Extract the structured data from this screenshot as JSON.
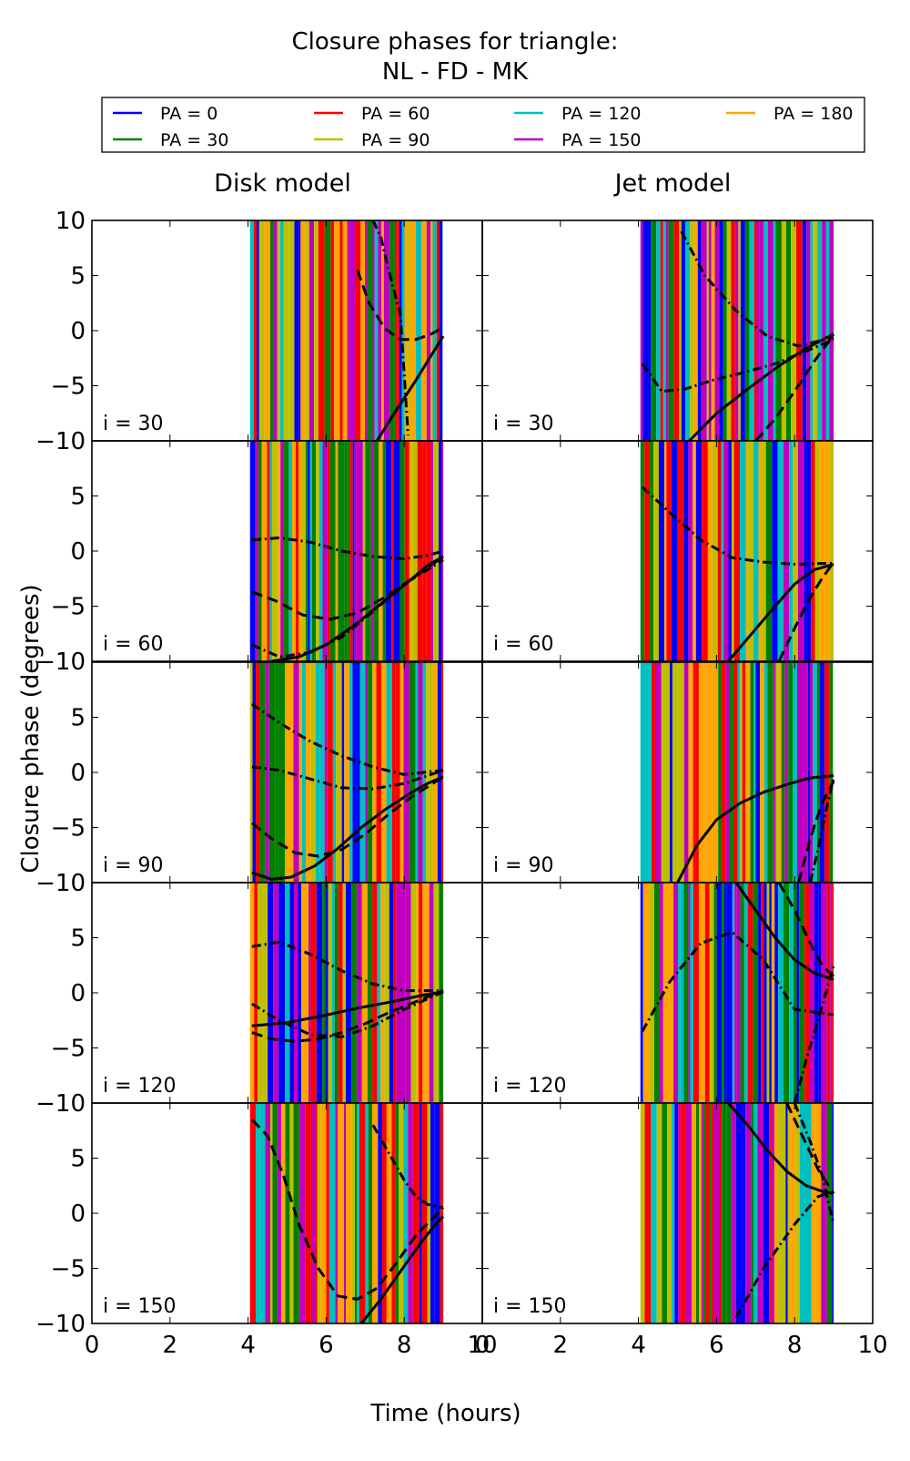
{
  "chart_data": {
    "type": "line",
    "title": "Closure phases for triangle:",
    "subtitle": "NL - FD - MK",
    "xlabel": "Time (hours)",
    "ylabel": "Closure phase (degrees)",
    "xlim": [
      0,
      10
    ],
    "ylim": [
      -10,
      10
    ],
    "xticks": [
      "0",
      "2",
      "4",
      "6",
      "8",
      "10"
    ],
    "yticks": [
      "10",
      "5",
      "0",
      "−5",
      "−10"
    ],
    "yticks_top_panel_only": [
      "10"
    ],
    "grid": false,
    "legend": {
      "placement": "top",
      "columns": 4,
      "entries": [
        {
          "label": "PA = 0",
          "color": "#0000ff"
        },
        {
          "label": "PA = 30",
          "color": "#008000"
        },
        {
          "label": "PA = 60",
          "color": "#ff0000"
        },
        {
          "label": "PA = 90",
          "color": "#bfbf00"
        },
        {
          "label": "PA = 120",
          "color": "#00bfbf"
        },
        {
          "label": "PA = 150",
          "color": "#bf00bf"
        },
        {
          "label": "PA = 180",
          "color": "#ffa500"
        }
      ]
    },
    "columns": [
      "Disk model",
      "Jet model"
    ],
    "rows": [
      "i = 30",
      "i = 60",
      "i = 90",
      "i = 120",
      "i = 150"
    ],
    "time_range_hours": [
      4.05,
      9.0
    ],
    "panels": [
      {
        "column": "Disk model",
        "row": "i = 30",
        "curves": [
          {
            "style": "solid",
            "x": [
              7.3,
              7.8,
              8.3,
              8.7,
              9.0
            ],
            "y": [
              -10,
              -7.2,
              -4.5,
              -2.2,
              -0.5
            ]
          },
          {
            "style": "dashed",
            "x": [
              6.8,
              7.1,
              7.5,
              7.9,
              8.3,
              8.7,
              9.0
            ],
            "y": [
              5.5,
              2.5,
              0.2,
              -0.8,
              -0.8,
              -0.3,
              0.3
            ]
          },
          {
            "style": "dashdot",
            "x": [
              7.2,
              7.4,
              7.6,
              7.9,
              8.1
            ],
            "y": [
              10,
              8.5,
              5.5,
              1.5,
              -9.5
            ]
          }
        ]
      },
      {
        "column": "Jet model",
        "row": "i = 30",
        "curves": [
          {
            "style": "solid",
            "x": [
              5.3,
              6.0,
              6.8,
              7.6,
              8.3,
              9.0
            ],
            "y": [
              -10,
              -7.5,
              -5.3,
              -3.2,
              -1.6,
              -0.3
            ]
          },
          {
            "style": "dashed",
            "x": [
              7.0,
              7.5,
              8.0,
              8.5,
              9.0
            ],
            "y": [
              -10,
              -8.0,
              -5.5,
              -2.8,
              -0.4
            ]
          },
          {
            "style": "dashdot",
            "x": [
              4.1,
              4.6,
              5.2,
              5.9,
              6.7,
              7.5,
              8.2,
              9.0
            ],
            "y": [
              -3.0,
              -5.5,
              -5.3,
              -4.5,
              -3.8,
              -3.0,
              -2.0,
              -0.8
            ]
          },
          {
            "style": "dashdot",
            "x": [
              5.1,
              5.7,
              6.5,
              7.3,
              8.1,
              9.0
            ],
            "y": [
              9.0,
              5.0,
              1.8,
              -0.5,
              -1.4,
              -0.6
            ]
          }
        ]
      },
      {
        "column": "Disk model",
        "row": "i = 60",
        "curves": [
          {
            "style": "solid",
            "x": [
              4.6,
              5.3,
              6.0,
              6.7,
              7.4,
              8.1,
              8.6,
              9.0
            ],
            "y": [
              -10,
              -9.6,
              -8.5,
              -6.8,
              -4.8,
              -2.8,
              -1.3,
              -0.5
            ]
          },
          {
            "style": "dashed",
            "x": [
              4.1,
              4.7,
              5.4,
              6.1,
              6.8,
              7.5,
              8.2,
              9.0
            ],
            "y": [
              -3.7,
              -4.5,
              -5.8,
              -6.2,
              -5.6,
              -4.2,
              -2.5,
              -0.5
            ]
          },
          {
            "style": "dashdot",
            "x": [
              4.1,
              4.8,
              5.6,
              6.4,
              7.2,
              8.0,
              8.6,
              9.0
            ],
            "y": [
              1.0,
              1.2,
              0.8,
              0.0,
              -0.5,
              -0.7,
              -0.4,
              0.0
            ]
          },
          {
            "style": "dashdot",
            "x": [
              4.1,
              4.8,
              5.6,
              6.4,
              7.2,
              8.0,
              9.0
            ],
            "y": [
              -8.5,
              -9.6,
              -9.2,
              -7.8,
              -5.5,
              -3.0,
              -0.8
            ]
          }
        ]
      },
      {
        "column": "Jet model",
        "row": "i = 60",
        "curves": [
          {
            "style": "solid",
            "x": [
              6.3,
              6.9,
              7.5,
              8.0,
              8.5,
              9.0
            ],
            "y": [
              -10,
              -7.5,
              -5.0,
              -3.0,
              -1.7,
              -1.2
            ]
          },
          {
            "style": "dashed",
            "x": [
              7.6,
              8.0,
              8.4,
              8.7,
              9.0
            ],
            "y": [
              -10,
              -7.0,
              -4.2,
              -2.5,
              -1.0
            ]
          },
          {
            "style": "dashdot",
            "x": [
              4.1,
              4.8,
              5.6,
              6.4,
              7.2,
              8.0,
              9.0
            ],
            "y": [
              5.8,
              3.5,
              1.0,
              -0.6,
              -1.0,
              -1.2,
              -1.1
            ]
          }
        ]
      },
      {
        "column": "Disk model",
        "row": "i = 90",
        "curves": [
          {
            "style": "solid",
            "x": [
              4.1,
              4.6,
              5.1,
              5.7,
              6.3,
              6.9,
              7.5,
              8.1,
              8.6,
              9.0
            ],
            "y": [
              -9.1,
              -9.7,
              -9.5,
              -8.5,
              -6.9,
              -5.0,
              -3.4,
              -2.0,
              -1.0,
              -0.4
            ]
          },
          {
            "style": "dashed",
            "x": [
              4.1,
              4.6,
              5.2,
              5.8,
              6.4,
              7.0,
              7.6,
              8.2,
              9.0
            ],
            "y": [
              -4.6,
              -6.0,
              -7.3,
              -7.6,
              -7.0,
              -5.6,
              -3.8,
              -2.2,
              -0.4
            ]
          },
          {
            "style": "dashdot",
            "x": [
              4.1,
              4.8,
              5.6,
              6.4,
              7.2,
              8.0,
              8.6,
              9.0
            ],
            "y": [
              0.5,
              0.2,
              -0.6,
              -1.4,
              -1.5,
              -1.0,
              -0.3,
              0.2
            ]
          },
          {
            "style": "dashdot",
            "x": [
              4.1,
              4.8,
              5.6,
              6.4,
              7.2,
              8.0,
              9.0
            ],
            "y": [
              6.2,
              4.5,
              2.8,
              1.5,
              0.5,
              -0.2,
              0.2
            ]
          }
        ]
      },
      {
        "column": "Jet model",
        "row": "i = 90",
        "curves": [
          {
            "style": "solid",
            "x": [
              5.0,
              5.5,
              6.0,
              6.6,
              7.2,
              7.8,
              8.4,
              9.0
            ],
            "y": [
              -10,
              -6.6,
              -4.3,
              -2.8,
              -1.8,
              -1.1,
              -0.5,
              -0.3
            ]
          },
          {
            "style": "dashed",
            "x": [
              8.1,
              8.4,
              8.7,
              9.0
            ],
            "y": [
              -10,
              -6.0,
              -2.8,
              -0.8
            ]
          },
          {
            "style": "dashdot",
            "x": [
              8.4,
              8.6,
              8.8,
              9.0
            ],
            "y": [
              -10,
              -7.0,
              -3.5,
              -0.5
            ]
          }
        ]
      },
      {
        "column": "Disk model",
        "row": "i = 120",
        "curves": [
          {
            "style": "solid",
            "x": [
              4.1,
              5.0,
              5.9,
              6.8,
              7.7,
              8.5,
              9.0
            ],
            "y": [
              -3.0,
              -2.7,
              -2.1,
              -1.4,
              -0.8,
              -0.2,
              0.1
            ]
          },
          {
            "style": "dashed",
            "x": [
              4.1,
              4.6,
              5.2,
              5.8,
              6.4,
              7.0,
              7.6,
              8.3,
              9.0
            ],
            "y": [
              -3.6,
              -4.2,
              -4.4,
              -4.2,
              -3.6,
              -2.8,
              -1.8,
              -0.8,
              0.2
            ]
          },
          {
            "style": "dashdot",
            "x": [
              4.1,
              4.8,
              5.6,
              6.4,
              7.2,
              8.0,
              9.0
            ],
            "y": [
              4.2,
              4.6,
              3.5,
              2.0,
              0.8,
              0.2,
              0.2
            ]
          },
          {
            "style": "dashdot",
            "x": [
              4.1,
              4.8,
              5.6,
              6.4,
              7.2,
              8.0,
              9.0
            ],
            "y": [
              -1.0,
              -2.5,
              -3.8,
              -4.0,
              -3.0,
              -1.5,
              0.1
            ]
          }
        ]
      },
      {
        "column": "Jet model",
        "row": "i = 120",
        "curves": [
          {
            "style": "solid",
            "x": [
              6.5,
              7.0,
              7.5,
              8.0,
              8.5,
              9.0
            ],
            "y": [
              10,
              7.5,
              5.0,
              3.0,
              1.8,
              1.2
            ]
          },
          {
            "style": "dashed",
            "x": [
              7.6,
              8.0,
              8.4,
              8.7,
              9.0
            ],
            "y": [
              10,
              7.5,
              4.5,
              2.5,
              1.5
            ]
          },
          {
            "style": "dashdot",
            "x": [
              4.1,
              4.8,
              5.6,
              6.4,
              7.2,
              8.0,
              9.0
            ],
            "y": [
              -3.5,
              1.0,
              4.5,
              5.5,
              3.0,
              -1.5,
              -2.0
            ]
          },
          {
            "style": "dashdot",
            "x": [
              8.0,
              8.3,
              8.6,
              9.0
            ],
            "y": [
              -10,
              -6.0,
              -2.5,
              2.5
            ]
          }
        ]
      },
      {
        "column": "Disk model",
        "row": "i = 150",
        "curves": [
          {
            "style": "solid",
            "x": [
              6.9,
              7.4,
              7.9,
              8.4,
              8.8,
              9.0
            ],
            "y": [
              -10,
              -7.8,
              -5.3,
              -2.8,
              -1.0,
              -0.3
            ]
          },
          {
            "style": "dashed",
            "x": [
              4.1,
              4.5,
              4.9,
              5.3,
              5.8,
              6.3,
              6.8,
              7.3,
              7.8,
              8.3,
              9.0
            ],
            "y": [
              8.5,
              7.0,
              3.5,
              -1.0,
              -5.0,
              -7.5,
              -7.8,
              -6.8,
              -4.5,
              -2.0,
              0.5
            ]
          },
          {
            "style": "dashdot",
            "x": [
              7.2,
              7.6,
              8.0,
              8.3,
              8.6,
              9.0
            ],
            "y": [
              8.0,
              5.5,
              3.0,
              1.5,
              0.8,
              0.5
            ]
          }
        ]
      },
      {
        "column": "Jet model",
        "row": "i = 150",
        "curves": [
          {
            "style": "solid",
            "x": [
              6.3,
              6.8,
              7.3,
              7.8,
              8.3,
              8.7,
              9.0
            ],
            "y": [
              10,
              8.0,
              5.7,
              3.8,
              2.5,
              2.0,
              1.8
            ]
          },
          {
            "style": "dashed",
            "x": [
              7.8,
              8.2,
              8.6,
              9.0
            ],
            "y": [
              10,
              7.0,
              4.0,
              1.8
            ]
          },
          {
            "style": "dashdot",
            "x": [
              8.0,
              8.4,
              8.7,
              9.0
            ],
            "y": [
              10,
              6.5,
              3.5,
              -1.0
            ]
          },
          {
            "style": "dashdot",
            "x": [
              6.5,
              7.2,
              8.0,
              8.6,
              9.0
            ],
            "y": [
              -9.5,
              -5.0,
              -1.0,
              1.5,
              2.0
            ]
          }
        ]
      }
    ]
  }
}
